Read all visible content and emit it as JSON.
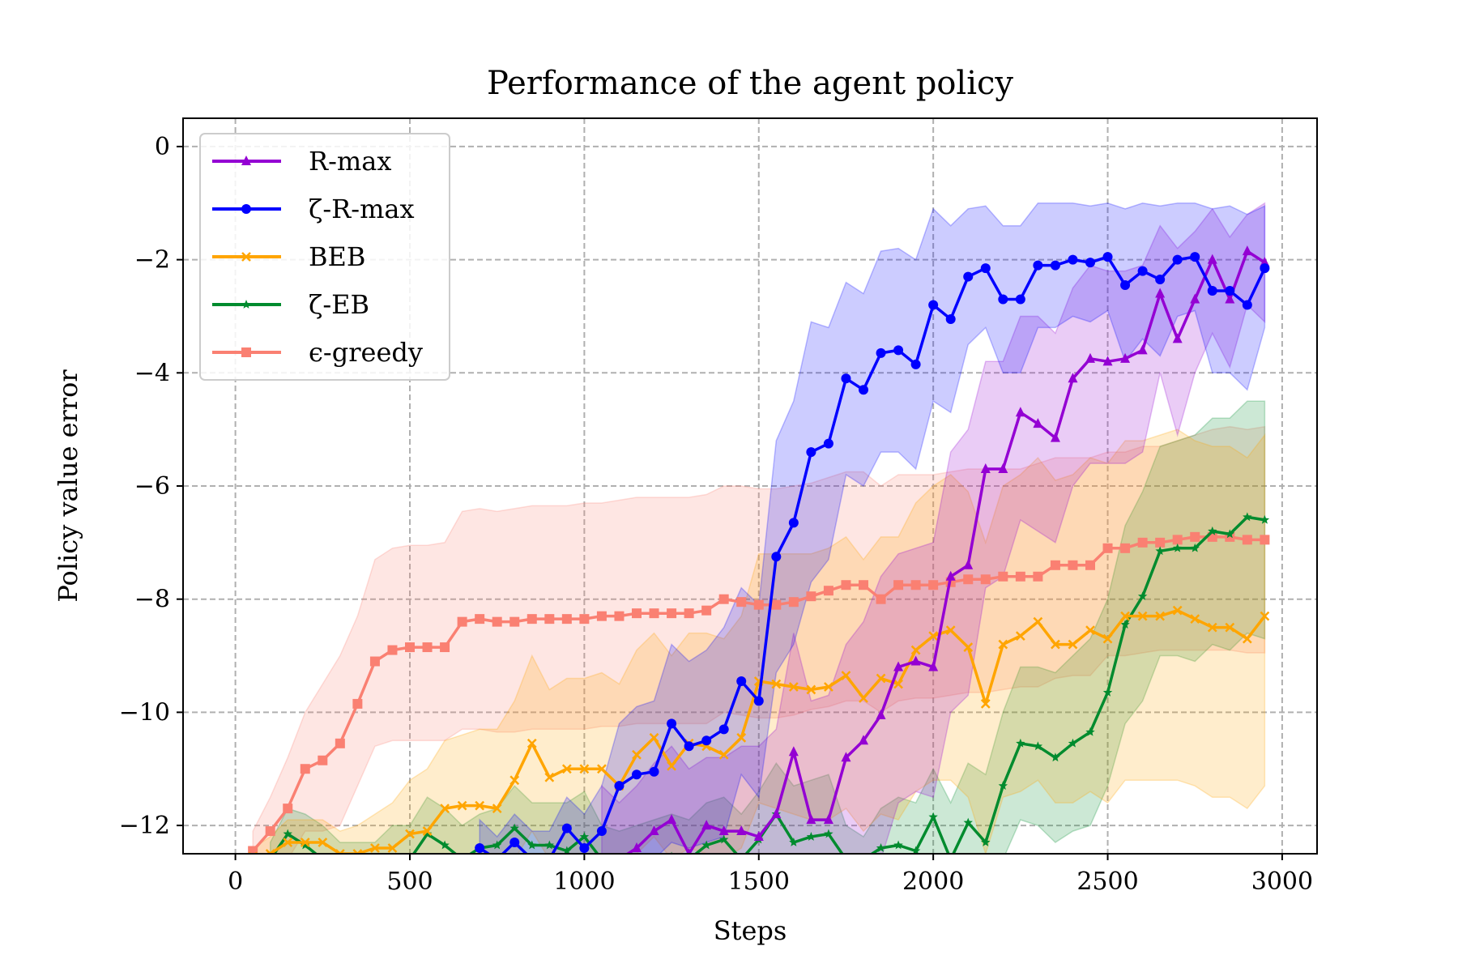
{
  "chart_data": {
    "type": "line",
    "title": "Performance of the agent policy",
    "xlabel": "Steps",
    "ylabel": "Policy value error",
    "xlim": [
      -150,
      3100
    ],
    "ylim": [
      -12.5,
      0.5
    ],
    "xticks": [
      0,
      500,
      1000,
      1500,
      2000,
      2500,
      3000
    ],
    "xtick_labels": [
      "0",
      "500",
      "1000",
      "1500",
      "2000",
      "2500",
      "3000"
    ],
    "yticks": [
      0,
      -2,
      -4,
      -6,
      -8,
      -10,
      -12
    ],
    "ytick_labels": [
      "0",
      "−2",
      "−4",
      "−6",
      "−8",
      "−10",
      "−12"
    ],
    "grid": true,
    "legend_position": "top-left",
    "series": [
      {
        "name": "R-max",
        "color": "#9400D3",
        "marker": "triangle",
        "x": [
          1050,
          1100,
          1150,
          1200,
          1250,
          1300,
          1350,
          1400,
          1450,
          1500,
          1550,
          1600,
          1650,
          1700,
          1750,
          1800,
          1850,
          1900,
          1950,
          2000,
          2050,
          2100,
          2150,
          2200,
          2250,
          2300,
          2350,
          2400,
          2450,
          2500,
          2550,
          2600,
          2650,
          2700,
          2750,
          2800,
          2850,
          2900,
          2950
        ],
        "y": [
          -12.6,
          -12.6,
          -12.4,
          -12.1,
          -11.9,
          -12.5,
          -12.0,
          -12.1,
          -12.1,
          -12.2,
          -11.8,
          -10.7,
          -11.9,
          -11.9,
          -10.8,
          -10.5,
          -10.05,
          -9.2,
          -9.1,
          -9.2,
          -7.6,
          -7.4,
          -5.7,
          -5.7,
          -4.7,
          -4.9,
          -5.15,
          -4.1,
          -3.75,
          -3.8,
          -3.75,
          -3.6,
          -2.6,
          -3.4,
          -2.7,
          -2.0,
          -2.7,
          -1.85,
          -2.05
        ],
        "upper": [
          -11.3,
          -11.6,
          -11.3,
          -10.9,
          -10.6,
          -11.0,
          -10.8,
          -10.8,
          -10.6,
          -10.6,
          -10.3,
          -8.6,
          -9.8,
          -9.7,
          -8.8,
          -8.4,
          -7.6,
          -7.2,
          -7.1,
          -7.0,
          -5.4,
          -5.0,
          -3.8,
          -3.8,
          -3.0,
          -3.0,
          -3.3,
          -2.5,
          -2.1,
          -2.2,
          -2.2,
          -2.1,
          -1.4,
          -1.8,
          -1.5,
          -1.1,
          -1.6,
          -1.2,
          -1.0
        ],
        "lower": [
          -12.6,
          -12.6,
          -12.6,
          -12.6,
          -12.6,
          -12.6,
          -12.6,
          -12.6,
          -12.6,
          -12.6,
          -12.6,
          -12.6,
          -12.6,
          -12.6,
          -12.6,
          -12.6,
          -12.6,
          -11.6,
          -11.4,
          -11.5,
          -10.0,
          -9.7,
          -7.8,
          -7.6,
          -6.6,
          -6.8,
          -7.0,
          -6.0,
          -5.6,
          -5.6,
          -5.6,
          -5.4,
          -4.0,
          -5.1,
          -4.0,
          -3.3,
          -3.9,
          -2.8,
          -3.1
        ]
      },
      {
        "name": "ζ-R-max",
        "color": "#0000FF",
        "marker": "circle",
        "x": [
          700,
          750,
          800,
          850,
          900,
          950,
          1000,
          1050,
          1100,
          1150,
          1200,
          1250,
          1300,
          1350,
          1400,
          1450,
          1500,
          1550,
          1600,
          1650,
          1700,
          1750,
          1800,
          1850,
          1900,
          1950,
          2000,
          2050,
          2100,
          2150,
          2200,
          2250,
          2300,
          2350,
          2400,
          2450,
          2500,
          2550,
          2600,
          2650,
          2700,
          2750,
          2800,
          2850,
          2900,
          2950
        ],
        "y": [
          -12.4,
          -12.6,
          -12.3,
          -12.6,
          -12.6,
          -12.05,
          -12.4,
          -12.1,
          -11.3,
          -11.1,
          -11.05,
          -10.2,
          -10.6,
          -10.5,
          -10.3,
          -9.45,
          -9.8,
          -7.25,
          -6.65,
          -5.4,
          -5.25,
          -4.1,
          -4.3,
          -3.65,
          -3.6,
          -3.85,
          -2.8,
          -3.05,
          -2.3,
          -2.15,
          -2.7,
          -2.7,
          -2.1,
          -2.1,
          -2.0,
          -2.05,
          -1.95,
          -2.45,
          -2.2,
          -2.35,
          -2.0,
          -1.95,
          -2.55,
          -2.55,
          -2.8,
          -2.15
        ],
        "upper": [
          -11.9,
          -12.2,
          -11.8,
          -12.1,
          -12.1,
          -11.5,
          -11.8,
          -11.3,
          -10.2,
          -9.9,
          -9.8,
          -8.8,
          -9.1,
          -8.9,
          -8.5,
          -7.8,
          -8.1,
          -5.2,
          -4.5,
          -3.1,
          -3.2,
          -2.4,
          -2.6,
          -1.85,
          -1.8,
          -2.0,
          -1.1,
          -1.4,
          -1.1,
          -1.05,
          -1.4,
          -1.4,
          -1.0,
          -1.0,
          -1.0,
          -1.05,
          -1.0,
          -1.1,
          -1.0,
          -1.05,
          -1.0,
          -1.0,
          -1.1,
          -1.05,
          -1.2,
          -1.05
        ],
        "lower": [
          -12.6,
          -12.6,
          -12.6,
          -12.6,
          -12.6,
          -12.6,
          -12.6,
          -12.6,
          -12.6,
          -12.6,
          -12.6,
          -12.3,
          -12.4,
          -12.3,
          -12.2,
          -11.1,
          -11.5,
          -9.3,
          -8.8,
          -7.7,
          -7.3,
          -5.8,
          -6.0,
          -5.4,
          -5.4,
          -5.7,
          -4.5,
          -4.7,
          -3.5,
          -3.2,
          -4.0,
          -4.0,
          -3.2,
          -3.2,
          -3.0,
          -3.1,
          -2.9,
          -3.8,
          -3.4,
          -3.7,
          -3.0,
          -2.9,
          -4.0,
          -4.0,
          -4.3,
          -3.2
        ]
      },
      {
        "name": "BEB",
        "color": "#FFA500",
        "marker": "x",
        "x": [
          50,
          100,
          150,
          200,
          250,
          300,
          350,
          400,
          450,
          500,
          550,
          600,
          650,
          700,
          750,
          800,
          850,
          900,
          950,
          1000,
          1050,
          1100,
          1150,
          1200,
          1250,
          1300,
          1350,
          1400,
          1450,
          1500,
          1550,
          1600,
          1650,
          1700,
          1750,
          1800,
          1850,
          1900,
          1950,
          2000,
          2050,
          2100,
          2150,
          2200,
          2250,
          2300,
          2350,
          2400,
          2450,
          2500,
          2550,
          2600,
          2650,
          2700,
          2750,
          2800,
          2850,
          2900,
          2950
        ],
        "y": [
          -12.55,
          -12.5,
          -12.3,
          -12.3,
          -12.3,
          -12.5,
          -12.5,
          -12.4,
          -12.4,
          -12.15,
          -12.1,
          -11.7,
          -11.65,
          -11.65,
          -11.7,
          -11.2,
          -10.55,
          -11.15,
          -11.0,
          -11.0,
          -11.0,
          -11.3,
          -10.75,
          -10.45,
          -10.95,
          -10.55,
          -10.6,
          -10.75,
          -10.45,
          -9.45,
          -9.5,
          -9.55,
          -9.6,
          -9.55,
          -9.35,
          -9.75,
          -9.4,
          -9.5,
          -8.9,
          -8.65,
          -8.55,
          -8.85,
          -9.85,
          -8.8,
          -8.65,
          -8.4,
          -8.8,
          -8.8,
          -8.55,
          -8.7,
          -8.3,
          -8.3,
          -8.3,
          -8.2,
          -8.35,
          -8.5,
          -8.5,
          -8.7,
          -8.3
        ],
        "upper": [
          -12.4,
          -12.2,
          -11.9,
          -11.9,
          -11.9,
          -12.1,
          -12.0,
          -11.8,
          -11.6,
          -11.2,
          -11.0,
          -10.5,
          -10.4,
          -10.3,
          -10.3,
          -9.8,
          -9.0,
          -9.6,
          -9.4,
          -9.4,
          -9.3,
          -9.5,
          -8.9,
          -8.6,
          -9.0,
          -8.6,
          -8.6,
          -8.7,
          -8.3,
          -7.2,
          -7.2,
          -7.2,
          -7.2,
          -7.1,
          -6.9,
          -7.3,
          -6.9,
          -6.9,
          -6.3,
          -6.0,
          -5.8,
          -6.1,
          -7.0,
          -6.0,
          -5.8,
          -5.5,
          -5.9,
          -5.8,
          -5.5,
          -5.6,
          -5.2,
          -5.2,
          -5.1,
          -5.0,
          -5.2,
          -5.3,
          -5.3,
          -5.5,
          -5.1
        ],
        "lower": [
          -12.6,
          -12.6,
          -12.6,
          -12.6,
          -12.6,
          -12.6,
          -12.6,
          -12.6,
          -12.6,
          -12.6,
          -12.6,
          -12.6,
          -12.6,
          -12.6,
          -12.6,
          -12.6,
          -12.1,
          -12.6,
          -12.5,
          -12.5,
          -12.6,
          -12.6,
          -12.5,
          -12.2,
          -12.6,
          -12.4,
          -12.5,
          -12.6,
          -12.4,
          -11.6,
          -11.7,
          -11.8,
          -11.9,
          -11.9,
          -11.7,
          -12.1,
          -11.8,
          -11.9,
          -11.4,
          -11.2,
          -11.2,
          -11.5,
          -12.5,
          -11.5,
          -11.4,
          -11.2,
          -11.6,
          -11.6,
          -11.4,
          -11.6,
          -11.2,
          -11.2,
          -11.2,
          -11.2,
          -11.3,
          -11.5,
          -11.5,
          -11.7,
          -11.3
        ]
      },
      {
        "name": "ζ-EB",
        "color": "#008B2E",
        "marker": "star",
        "x": [
          100,
          150,
          200,
          250,
          300,
          350,
          400,
          450,
          500,
          550,
          600,
          650,
          700,
          750,
          800,
          850,
          900,
          950,
          1000,
          1050,
          1100,
          1150,
          1200,
          1250,
          1300,
          1350,
          1400,
          1450,
          1500,
          1550,
          1600,
          1650,
          1700,
          1750,
          1800,
          1850,
          1900,
          1950,
          2000,
          2050,
          2100,
          2150,
          2200,
          2250,
          2300,
          2350,
          2400,
          2450,
          2500,
          2550,
          2600,
          2650,
          2700,
          2750,
          2800,
          2850,
          2900,
          2950
        ],
        "y": [
          -12.6,
          -12.15,
          -12.35,
          -12.6,
          -12.6,
          -12.6,
          -12.6,
          -12.6,
          -12.6,
          -12.15,
          -12.35,
          -12.6,
          -12.4,
          -12.35,
          -12.05,
          -12.35,
          -12.35,
          -12.45,
          -12.2,
          -12.6,
          -12.6,
          -12.6,
          -12.6,
          -12.55,
          -12.6,
          -12.35,
          -12.25,
          -12.6,
          -12.25,
          -11.8,
          -12.3,
          -12.2,
          -12.15,
          -12.6,
          -12.6,
          -12.4,
          -12.35,
          -12.45,
          -11.85,
          -12.6,
          -11.95,
          -12.3,
          -11.3,
          -10.55,
          -10.6,
          -10.8,
          -10.55,
          -10.35,
          -9.65,
          -8.45,
          -7.95,
          -7.15,
          -7.1,
          -7.1,
          -6.8,
          -6.85,
          -6.55,
          -6.6
        ],
        "upper": [
          -12.3,
          -11.7,
          -11.8,
          -12.0,
          -12.3,
          -12.3,
          -12.3,
          -12.0,
          -12.0,
          -11.5,
          -11.7,
          -12.0,
          -11.8,
          -11.7,
          -11.3,
          -11.6,
          -11.6,
          -11.6,
          -11.4,
          -12.0,
          -12.1,
          -12.0,
          -11.9,
          -11.8,
          -11.9,
          -11.6,
          -11.5,
          -11.8,
          -11.4,
          -10.9,
          -11.3,
          -11.2,
          -11.1,
          -12.0,
          -12.2,
          -11.7,
          -11.5,
          -11.6,
          -11.0,
          -11.6,
          -10.9,
          -11.1,
          -10.0,
          -9.2,
          -9.2,
          -9.3,
          -9.0,
          -8.7,
          -8.0,
          -6.7,
          -6.1,
          -5.3,
          -5.2,
          -5.1,
          -4.8,
          -4.8,
          -4.5,
          -4.5
        ],
        "lower": [
          -12.6,
          -12.6,
          -12.6,
          -12.6,
          -12.6,
          -12.6,
          -12.6,
          -12.6,
          -12.6,
          -12.6,
          -12.6,
          -12.6,
          -12.6,
          -12.6,
          -12.6,
          -12.6,
          -12.6,
          -12.6,
          -12.6,
          -12.6,
          -12.6,
          -12.6,
          -12.6,
          -12.6,
          -12.6,
          -12.6,
          -12.6,
          -12.6,
          -12.6,
          -12.6,
          -12.6,
          -12.6,
          -12.6,
          -12.6,
          -12.6,
          -12.6,
          -12.6,
          -12.6,
          -12.6,
          -12.6,
          -12.6,
          -12.6,
          -12.6,
          -11.9,
          -12.0,
          -12.3,
          -12.1,
          -12.0,
          -11.3,
          -10.2,
          -9.8,
          -9.0,
          -9.0,
          -9.1,
          -8.8,
          -8.9,
          -8.6,
          -8.7
        ]
      },
      {
        "name": "ϵ-greedy",
        "color": "#FA8072",
        "marker": "square",
        "x": [
          50,
          100,
          150,
          200,
          250,
          300,
          350,
          400,
          450,
          500,
          550,
          600,
          650,
          700,
          750,
          800,
          850,
          900,
          950,
          1000,
          1050,
          1100,
          1150,
          1200,
          1250,
          1300,
          1350,
          1400,
          1450,
          1500,
          1550,
          1600,
          1650,
          1700,
          1750,
          1800,
          1850,
          1900,
          1950,
          2000,
          2050,
          2100,
          2150,
          2200,
          2250,
          2300,
          2350,
          2400,
          2450,
          2500,
          2550,
          2600,
          2650,
          2700,
          2750,
          2800,
          2850,
          2900,
          2950
        ],
        "y": [
          -12.45,
          -12.1,
          -11.7,
          -11.0,
          -10.85,
          -10.55,
          -9.85,
          -9.1,
          -8.9,
          -8.85,
          -8.85,
          -8.85,
          -8.4,
          -8.35,
          -8.4,
          -8.4,
          -8.35,
          -8.35,
          -8.35,
          -8.35,
          -8.3,
          -8.3,
          -8.25,
          -8.25,
          -8.25,
          -8.25,
          -8.2,
          -8.0,
          -8.05,
          -8.1,
          -8.1,
          -8.05,
          -7.95,
          -7.85,
          -7.75,
          -7.75,
          -8.0,
          -7.75,
          -7.75,
          -7.75,
          -7.7,
          -7.65,
          -7.65,
          -7.6,
          -7.6,
          -7.6,
          -7.4,
          -7.4,
          -7.4,
          -7.1,
          -7.1,
          -7.0,
          -7.0,
          -6.95,
          -6.9,
          -6.9,
          -6.9,
          -6.95,
          -6.95
        ],
        "upper": [
          -12.1,
          -11.5,
          -10.8,
          -10.0,
          -9.5,
          -9.0,
          -8.3,
          -7.3,
          -7.1,
          -7.05,
          -7.05,
          -7.0,
          -6.45,
          -6.4,
          -6.45,
          -6.4,
          -6.35,
          -6.35,
          -6.35,
          -6.3,
          -6.3,
          -6.25,
          -6.2,
          -6.2,
          -6.2,
          -6.2,
          -6.15,
          -6.0,
          -6.0,
          -6.05,
          -6.05,
          -6.0,
          -5.95,
          -5.85,
          -5.75,
          -5.75,
          -6.0,
          -5.8,
          -5.8,
          -5.8,
          -5.75,
          -5.7,
          -5.7,
          -5.7,
          -5.7,
          -5.6,
          -5.5,
          -5.5,
          -5.5,
          -5.4,
          -5.4,
          -5.3,
          -5.3,
          -5.2,
          -5.1,
          -5.0,
          -4.95,
          -5.0,
          -4.95
        ],
        "lower": [
          -12.6,
          -12.6,
          -12.6,
          -12.1,
          -12.1,
          -12.0,
          -11.3,
          -10.6,
          -10.5,
          -10.5,
          -10.5,
          -10.5,
          -10.3,
          -10.3,
          -10.35,
          -10.35,
          -10.3,
          -10.3,
          -10.3,
          -10.3,
          -10.25,
          -10.25,
          -10.2,
          -10.2,
          -10.2,
          -10.2,
          -10.2,
          -10.0,
          -10.05,
          -10.1,
          -10.1,
          -10.05,
          -9.95,
          -9.9,
          -9.8,
          -9.8,
          -10.0,
          -9.8,
          -9.75,
          -9.75,
          -9.7,
          -9.65,
          -9.65,
          -9.6,
          -9.55,
          -9.55,
          -9.4,
          -9.35,
          -9.35,
          -9.0,
          -9.0,
          -8.95,
          -8.9,
          -8.9,
          -8.9,
          -8.9,
          -8.9,
          -8.95,
          -8.95
        ]
      }
    ]
  }
}
